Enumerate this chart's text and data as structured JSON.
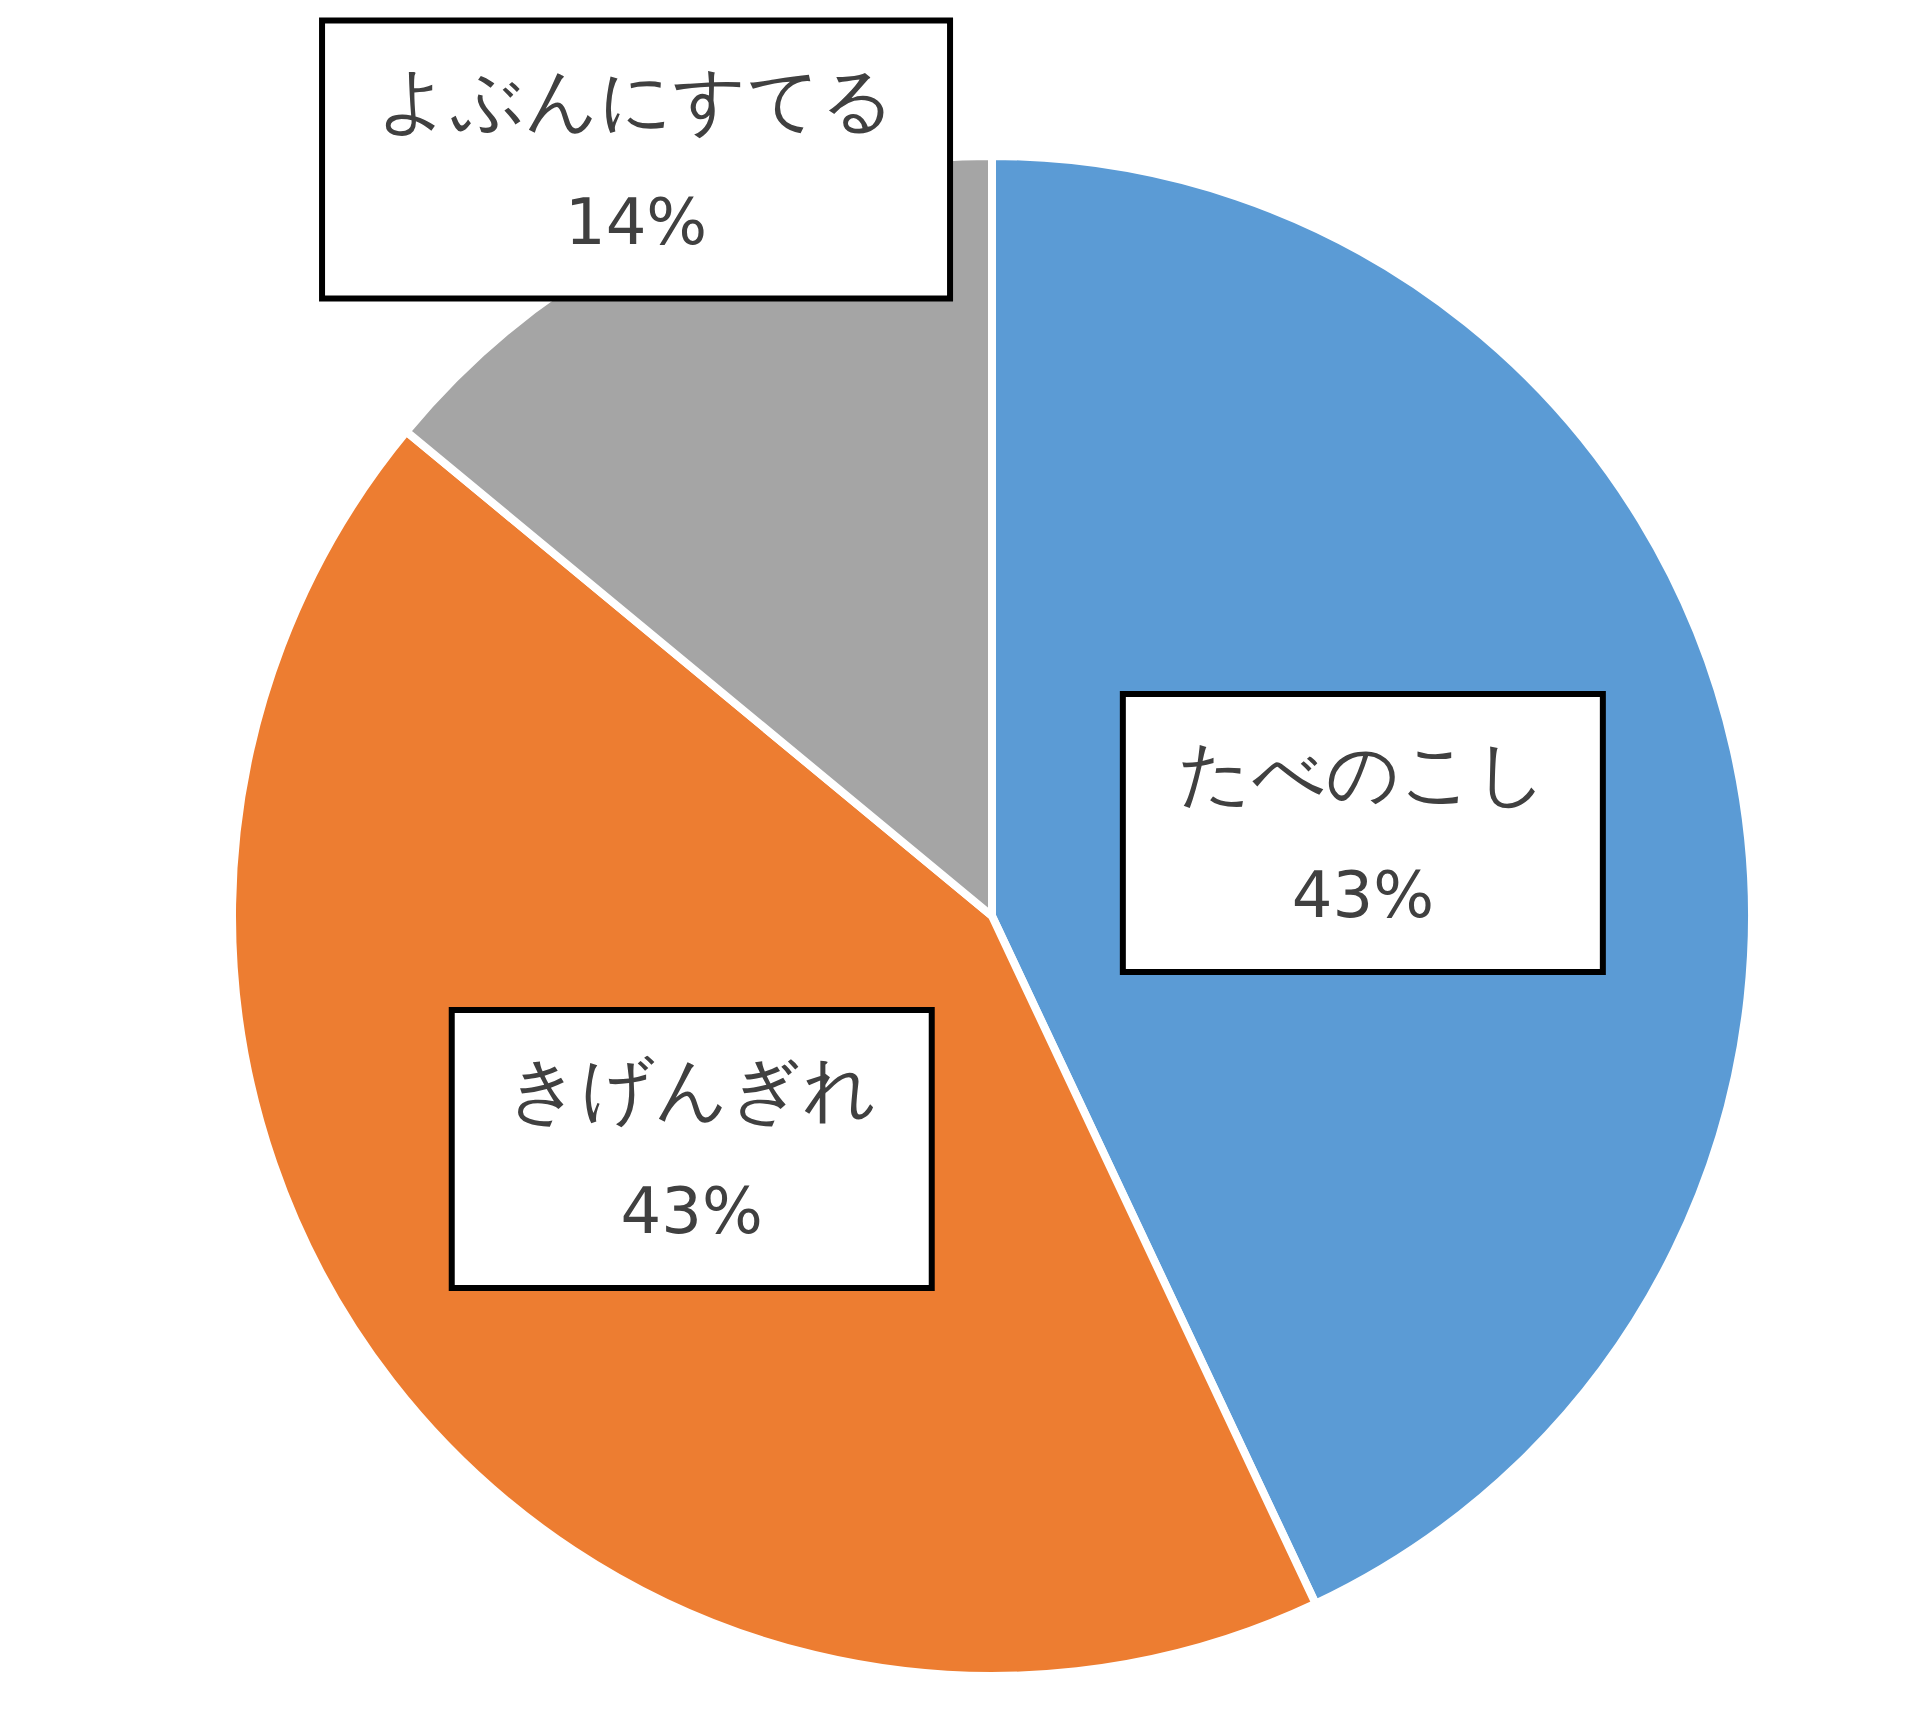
{
  "chart_data": {
    "type": "pie",
    "categories": [
      "たべのこし",
      "きげんぎれ",
      "よぶんにすてる"
    ],
    "values": [
      43,
      43,
      14
    ],
    "colors": [
      "#5b9bd5",
      "#ed7d31",
      "#a5a5a5"
    ],
    "value_labels": [
      "43%",
      "43%",
      "14%"
    ]
  }
}
